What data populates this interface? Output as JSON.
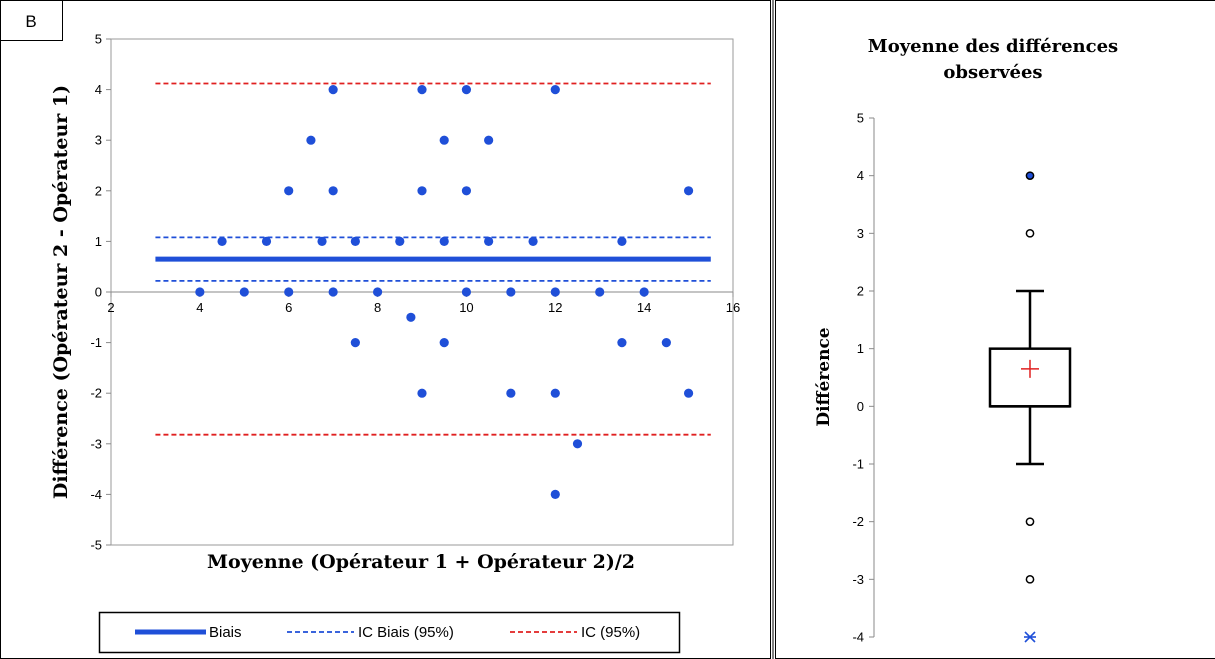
{
  "panel_label": "B",
  "chart_data": [
    {
      "type": "scatter",
      "xlabel": "Moyenne (Opérateur 1 + Opérateur 2)/2",
      "ylabel": "Différence (Opérateur 2 - Opérateur 1)",
      "xlim": [
        2,
        16
      ],
      "ylim": [
        -5,
        5
      ],
      "x_ticks": [
        2,
        4,
        6,
        8,
        10,
        12,
        14,
        16
      ],
      "y_ticks": [
        -5,
        -4,
        -3,
        -2,
        -1,
        0,
        1,
        2,
        3,
        4,
        5
      ],
      "x_axis_crosses_at_y": 0,
      "grid": false,
      "legend_position": "bottom",
      "points": [
        [
          4,
          0
        ],
        [
          4.5,
          1
        ],
        [
          5,
          0
        ],
        [
          5.5,
          1
        ],
        [
          6,
          0
        ],
        [
          6,
          2
        ],
        [
          6.5,
          3
        ],
        [
          6.75,
          1
        ],
        [
          7,
          0
        ],
        [
          7,
          2
        ],
        [
          7,
          4
        ],
        [
          7.5,
          1
        ],
        [
          7.5,
          -1
        ],
        [
          8,
          0
        ],
        [
          8.5,
          1
        ],
        [
          8.75,
          -0.5
        ],
        [
          9,
          4
        ],
        [
          9,
          2
        ],
        [
          9,
          -2
        ],
        [
          9.5,
          3
        ],
        [
          9.5,
          1
        ],
        [
          9.5,
          -1
        ],
        [
          10,
          4
        ],
        [
          10,
          2
        ],
        [
          10,
          0
        ],
        [
          10.5,
          3
        ],
        [
          10.5,
          1
        ],
        [
          11,
          0
        ],
        [
          11,
          -2
        ],
        [
          11.5,
          1
        ],
        [
          12,
          4
        ],
        [
          12,
          0
        ],
        [
          12,
          -2
        ],
        [
          12,
          -4
        ],
        [
          12.5,
          -3
        ],
        [
          13,
          0
        ],
        [
          13.5,
          1
        ],
        [
          13.5,
          -1
        ],
        [
          14,
          0
        ],
        [
          14.5,
          -1
        ],
        [
          15,
          2
        ],
        [
          15,
          -2
        ]
      ],
      "point_color": "#1f4fd8",
      "reference_lines": [
        {
          "name": "Biais",
          "y": 0.65,
          "x_range": [
            3,
            15.5
          ],
          "style": "solid",
          "color": "#1f4fd8"
        },
        {
          "name": "IC Biais (95%)",
          "y": [
            0.22,
            1.08
          ],
          "x_range": [
            3,
            15.5
          ],
          "style": "dashed",
          "color": "#1f4fd8"
        },
        {
          "name": "IC (95%)",
          "y": [
            -2.82,
            4.12
          ],
          "x_range": [
            3,
            15.5
          ],
          "style": "dashed",
          "color": "#e02020"
        }
      ],
      "legend": [
        "Biais",
        "IC Biais (95%)",
        "IC (95%)"
      ]
    },
    {
      "type": "box",
      "title": "Moyenne des différences observées",
      "ylabel": "Différence",
      "ylim": [
        -4,
        5
      ],
      "y_ticks": [
        -4,
        -3,
        -2,
        -1,
        0,
        1,
        2,
        3,
        4,
        5
      ],
      "whisker_low": -1,
      "q1": 0,
      "median": 0,
      "q3": 1,
      "whisker_high": 2,
      "mean": 0.65,
      "mean_color": "#e02020",
      "outliers": [
        {
          "y": 4,
          "filled": true
        },
        {
          "y": 3,
          "filled": false
        },
        {
          "y": -2,
          "filled": false
        },
        {
          "y": -3,
          "filled": false
        }
      ],
      "extreme": {
        "y": -4,
        "color": "#1f4fd8"
      }
    }
  ]
}
